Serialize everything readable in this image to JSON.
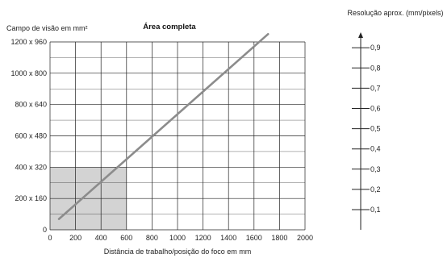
{
  "chart_data": {
    "type": "line",
    "title": "Área completa",
    "ylabel": "Campo de visão em mm²",
    "xlabel": "Distância de trabalho/posição do foco em mm",
    "x_ticks": [
      0,
      200,
      400,
      600,
      800,
      1000,
      1200,
      1400,
      1600,
      1800,
      2000
    ],
    "y_ticks": [
      0,
      160,
      320,
      480,
      640,
      800,
      960
    ],
    "y_tick_labels": [
      "0",
      "200 x 160",
      "400 x 320",
      "600 x 480",
      "800 x 640",
      "1000 x 800",
      "1200 x 960"
    ],
    "xlim": [
      0,
      2000
    ],
    "ylim": [
      0,
      960
    ],
    "grid": true,
    "series": [
      {
        "x": [
          70,
          1710
        ],
        "y": [
          55,
          1000
        ]
      }
    ],
    "highlight_region": {
      "x": [
        0,
        600
      ],
      "y": [
        0,
        320
      ]
    },
    "colors": {
      "line": "#8c8c8c",
      "highlight": "#d3d3d3",
      "grid": "#222222"
    },
    "resolution_scale": {
      "label": "Resolução aprox. (mm/pixels)",
      "ticks": [
        "0,1",
        "0,2",
        "0,3",
        "0,4",
        "0,5",
        "0,6",
        "0,7",
        "0,8",
        "0,9"
      ]
    }
  }
}
